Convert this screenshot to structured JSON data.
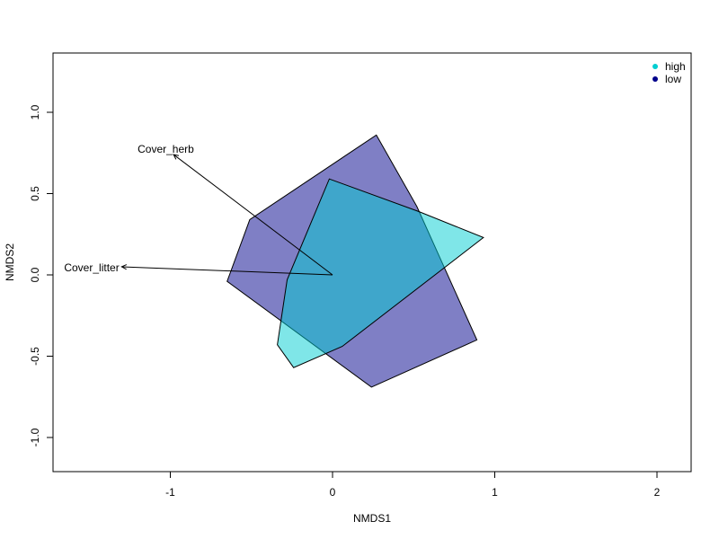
{
  "chart_data": {
    "type": "scatter",
    "title": "",
    "xlabel": "NMDS1",
    "ylabel": "NMDS2",
    "xlim": [
      -1.7,
      2.2
    ],
    "ylim": [
      -1.22,
      1.38
    ],
    "xticks": [
      -1,
      0,
      1,
      2
    ],
    "yticks": [
      -1.0,
      -0.5,
      0.0,
      0.5,
      1.0
    ],
    "xtick_labels": [
      "-1",
      "0",
      "1",
      "2"
    ],
    "ytick_labels": [
      "-1.0",
      "-0.5",
      "0.0",
      "0.5",
      "1.0"
    ],
    "grid": false,
    "legend_position": "top-right",
    "series": [
      {
        "name": "low",
        "color": "#00008B",
        "fill": "#00008B",
        "fill_opacity": 0.5,
        "polygon": [
          [
            0.27,
            0.86
          ],
          [
            0.52,
            0.42
          ],
          [
            0.89,
            -0.4
          ],
          [
            0.24,
            -0.69
          ],
          [
            -0.65,
            -0.04
          ],
          [
            -0.51,
            0.34
          ]
        ]
      },
      {
        "name": "high",
        "color": "#00CED1",
        "fill": "#00CED1",
        "fill_opacity": 0.5,
        "polygon": [
          [
            -0.02,
            0.59
          ],
          [
            0.53,
            0.39
          ],
          [
            0.93,
            0.23
          ],
          [
            0.06,
            -0.44
          ],
          [
            -0.24,
            -0.57
          ],
          [
            -0.34,
            -0.43
          ],
          [
            -0.28,
            -0.03
          ]
        ]
      }
    ],
    "vectors": [
      {
        "label": "Cover_herb",
        "x": -0.98,
        "y": 0.74
      },
      {
        "label": "Cover_litter",
        "x": -1.3,
        "y": 0.05
      }
    ]
  }
}
